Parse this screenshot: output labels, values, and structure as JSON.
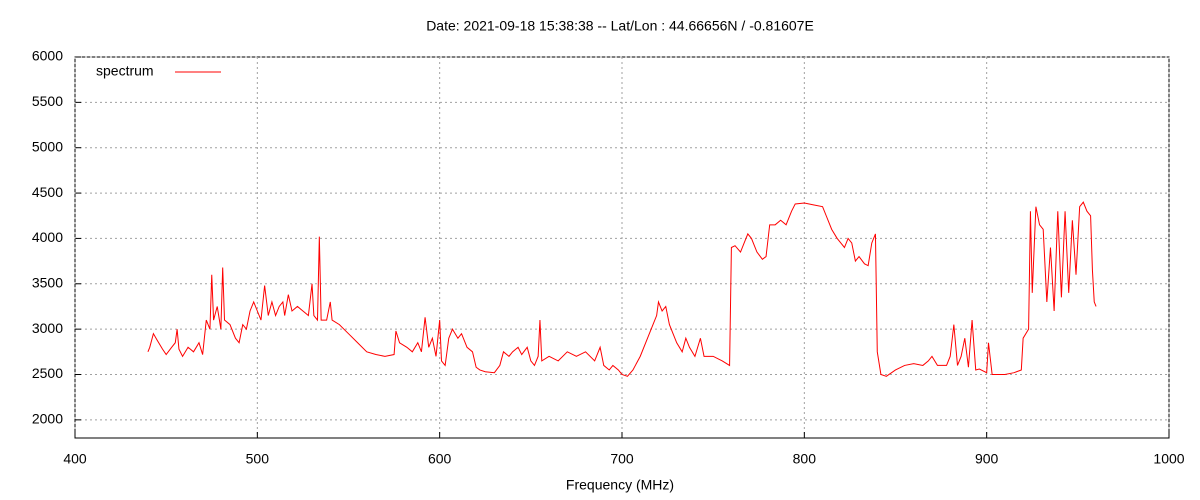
{
  "chart_data": {
    "type": "line",
    "title": "Date: 2021-09-18 15:38:38  --  Lat/Lon : 44.66656N / -0.81607E",
    "xlabel": "Frequency (MHz)",
    "xlim": [
      400,
      1000
    ],
    "xticks": [
      400,
      500,
      600,
      700,
      800,
      900,
      1000
    ],
    "ylim": [
      1800,
      6000
    ],
    "yticks": [
      2000,
      2500,
      3000,
      3500,
      4000,
      4500,
      5000,
      5500,
      6000
    ],
    "grid": true,
    "legend": "upper left",
    "x": [
      440,
      441,
      443,
      445,
      448,
      450,
      453,
      455,
      456,
      457,
      459,
      462,
      465,
      468,
      470,
      472,
      474,
      475,
      476,
      478,
      480,
      481,
      482,
      485,
      488,
      490,
      492,
      494,
      496,
      498,
      500,
      502,
      504,
      506,
      508,
      510,
      512,
      514,
      515,
      517,
      519,
      522,
      525,
      528,
      530,
      531,
      533,
      534,
      535,
      538,
      540,
      541,
      545,
      550,
      555,
      560,
      565,
      570,
      575,
      576,
      578,
      582,
      585,
      588,
      590,
      592,
      594,
      596,
      598,
      600,
      601,
      603,
      605,
      607,
      610,
      612,
      615,
      618,
      620,
      622,
      625,
      630,
      633,
      635,
      638,
      640,
      643,
      645,
      648,
      650,
      652,
      654,
      655,
      656,
      660,
      665,
      670,
      675,
      680,
      685,
      688,
      690,
      693,
      695,
      698,
      700,
      703,
      706,
      710,
      714,
      717,
      719,
      720,
      722,
      724,
      726,
      730,
      733,
      735,
      737,
      740,
      743,
      745,
      750,
      755,
      759,
      760,
      762,
      765,
      767,
      769,
      771,
      774,
      777,
      779,
      781,
      784,
      787,
      790,
      793,
      795,
      800,
      805,
      810,
      812,
      815,
      818,
      820,
      822,
      824,
      826,
      828,
      830,
      833,
      835,
      837,
      839,
      840,
      842,
      845,
      850,
      855,
      860,
      865,
      868,
      870,
      873,
      878,
      880,
      882,
      884,
      886,
      888,
      890,
      892,
      894,
      896,
      900,
      901,
      903,
      910,
      915,
      919,
      920,
      923,
      924,
      925,
      927,
      929,
      931,
      933,
      935,
      937,
      939,
      941,
      943,
      945,
      947,
      949,
      951,
      953,
      955,
      957,
      958,
      959,
      960
    ],
    "series": [
      {
        "name": "spectrum",
        "color": "#ff0000",
        "values": [
          2750,
          2800,
          2950,
          2880,
          2780,
          2720,
          2800,
          2850,
          3000,
          2780,
          2700,
          2800,
          2750,
          2850,
          2720,
          3100,
          3000,
          3600,
          3100,
          3250,
          3000,
          3680,
          3100,
          3050,
          2900,
          2850,
          3050,
          3000,
          3200,
          3300,
          3200,
          3100,
          3480,
          3150,
          3300,
          3150,
          3250,
          3300,
          3150,
          3380,
          3200,
          3250,
          3200,
          3150,
          3500,
          3150,
          3100,
          4020,
          3100,
          3100,
          3300,
          3100,
          3050,
          2950,
          2850,
          2750,
          2720,
          2700,
          2720,
          2980,
          2850,
          2800,
          2750,
          2850,
          2750,
          3130,
          2800,
          2900,
          2700,
          3100,
          2650,
          2600,
          2900,
          3000,
          2900,
          2950,
          2800,
          2750,
          2580,
          2550,
          2530,
          2520,
          2600,
          2750,
          2700,
          2750,
          2800,
          2720,
          2800,
          2650,
          2600,
          2700,
          3100,
          2650,
          2700,
          2650,
          2750,
          2700,
          2750,
          2650,
          2800,
          2600,
          2550,
          2600,
          2550,
          2500,
          2480,
          2550,
          2700,
          2900,
          3050,
          3150,
          3300,
          3200,
          3250,
          3050,
          2850,
          2750,
          2900,
          2800,
          2700,
          2900,
          2700,
          2700,
          2650,
          2600,
          3900,
          3920,
          3850,
          3950,
          4050,
          4000,
          3850,
          3770,
          3800,
          4150,
          4150,
          4200,
          4150,
          4300,
          4380,
          4390,
          4370,
          4350,
          4250,
          4100,
          4000,
          3950,
          3900,
          4000,
          3950,
          3750,
          3800,
          3720,
          3700,
          3950,
          4050,
          2750,
          2500,
          2480,
          2550,
          2600,
          2620,
          2600,
          2650,
          2700,
          2600,
          2600,
          2700,
          3050,
          2600,
          2700,
          2900,
          2580,
          3100,
          2550,
          2560,
          2520,
          2850,
          2500,
          2500,
          2520,
          2550,
          2900,
          3000,
          4300,
          3400,
          4350,
          4150,
          4100,
          3300,
          3900,
          3200,
          4300,
          3350,
          4300,
          3400,
          4200,
          3600,
          4350,
          4400,
          4300,
          4250,
          3650,
          3300,
          3250
        ]
      }
    ]
  }
}
